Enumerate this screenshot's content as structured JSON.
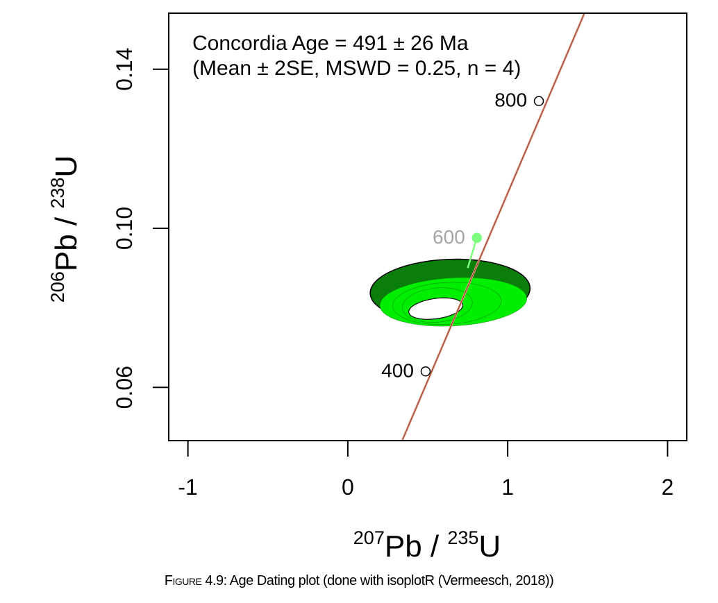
{
  "chart_data": {
    "type": "scatter",
    "annotation_line1": "Concordia Age = 491 ± 26 Ma",
    "annotation_line2": "(Mean ± 2SE, MSWD = 0.25, n = 4)",
    "xlabel": {
      "mass": "207",
      "element": "Pb",
      "sep": " / ",
      "mass2": "235",
      "element2": "U"
    },
    "ylabel": {
      "mass": "206",
      "element": "Pb",
      "sep": " / ",
      "mass2": "238",
      "element2": "U"
    },
    "xlim": [
      -1.12,
      2.12
    ],
    "ylim": [
      0.0466,
      0.1541
    ],
    "x_ticks": [
      -1,
      0,
      1,
      2
    ],
    "x_tick_labels": [
      "-1",
      "0",
      "1",
      "2"
    ],
    "y_ticks": [
      0.06,
      0.1,
      0.14
    ],
    "y_tick_labels": [
      "0.06",
      "0.10",
      "0.14"
    ],
    "concordia": {
      "color": "#e8907a",
      "x": [
        0.34,
        1.48
      ],
      "y": [
        0.0466,
        0.1541
      ]
    },
    "age_markers": [
      {
        "label": "400",
        "x": 0.4867,
        "y": 0.064
      },
      {
        "label": "600",
        "x": 0.8074,
        "y": 0.0976
      },
      {
        "label": "800",
        "x": 1.195,
        "y": 0.132
      }
    ],
    "ellipses": [
      {
        "name": "outer",
        "color": "#0a7d0a",
        "cx": 0.64,
        "cy": 0.0843,
        "rx": 1.0,
        "ry": 0.0158,
        "rot_deg": -2
      },
      {
        "name": "mid",
        "color": "#00ee00",
        "cx": 0.66,
        "cy": 0.0815,
        "rx": 0.92,
        "ry": 0.0121,
        "rot_deg": -3
      },
      {
        "name": "inner1",
        "color": "#00ee00",
        "cx": 0.62,
        "cy": 0.0811,
        "rx": 0.68,
        "ry": 0.0105,
        "rot_deg": -3
      },
      {
        "name": "inner2",
        "color": "#00ee00",
        "cx": 0.56,
        "cy": 0.0807,
        "rx": 0.44,
        "ry": 0.0086,
        "rot_deg": -5
      }
    ],
    "mean_ellipse": {
      "color": "#ffffff",
      "cx": 0.55,
      "cy": 0.0798,
      "rx": 0.34,
      "ry": 0.0051,
      "rot_deg": -8
    },
    "concordia_point": {
      "label": "491 Ma",
      "color": "#7fff7f",
      "x": 0.75,
      "y": 0.09
    },
    "grid": false,
    "legend": "none"
  },
  "caption": {
    "figure_label": "Figure 4.9:",
    "text": " Age Dating plot (done with isoplotR (Vermeesch, 2018))"
  }
}
